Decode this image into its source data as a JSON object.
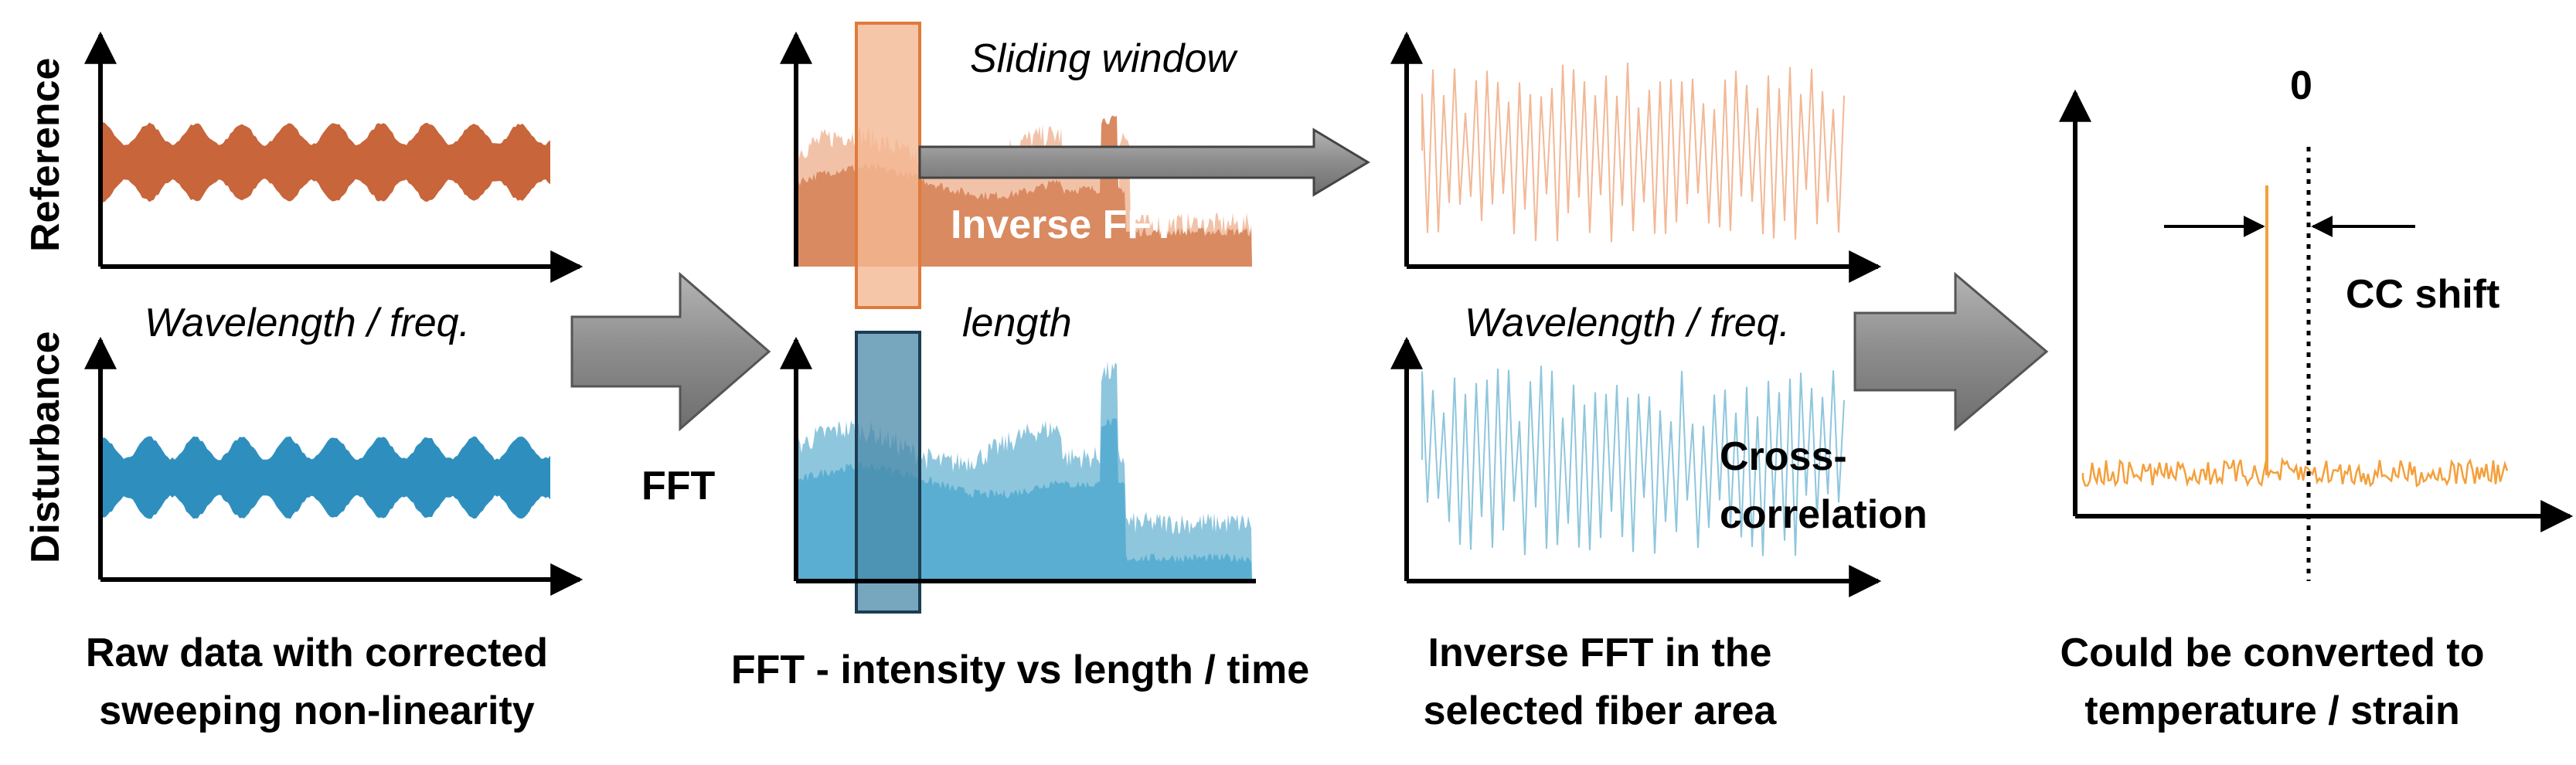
{
  "labels": {
    "reference_axis": "Reference",
    "disturbance_axis": "Disturbance",
    "wavelength_freq_1": "Wavelength / freq.",
    "fft_arrow": "FFT",
    "sliding_window": "Sliding window",
    "inverse_fft_overlay": "Inverse FFT",
    "length": "length",
    "wavelength_freq_2": "Wavelength / freq.",
    "cross_correlation_1": "Cross-",
    "cross_correlation_2": "correlation",
    "zero": "0",
    "cc_shift": "CC shift"
  },
  "captions": {
    "panel1_line1": "Raw data with corrected",
    "panel1_line2": "sweeping non-linearity",
    "panel2_line1": "FFT - intensity vs length / time",
    "panel3_line1": "Inverse FFT in the",
    "panel3_line2": "selected fiber area",
    "panel4_line1": "Could be converted to",
    "panel4_line2": "temperature / strain"
  },
  "colors": {
    "reference_fill": "#c8653a",
    "reference_light": "#f2c2a8",
    "disturbance_fill": "#2e8fbf",
    "disturbance_light": "#8ec6dd",
    "window_ref": "#f4b894",
    "window_dist": "#4a8aaa",
    "arrow": "#8a8a8a",
    "cc_trace": "#f4a03c",
    "axis": "#000000"
  }
}
